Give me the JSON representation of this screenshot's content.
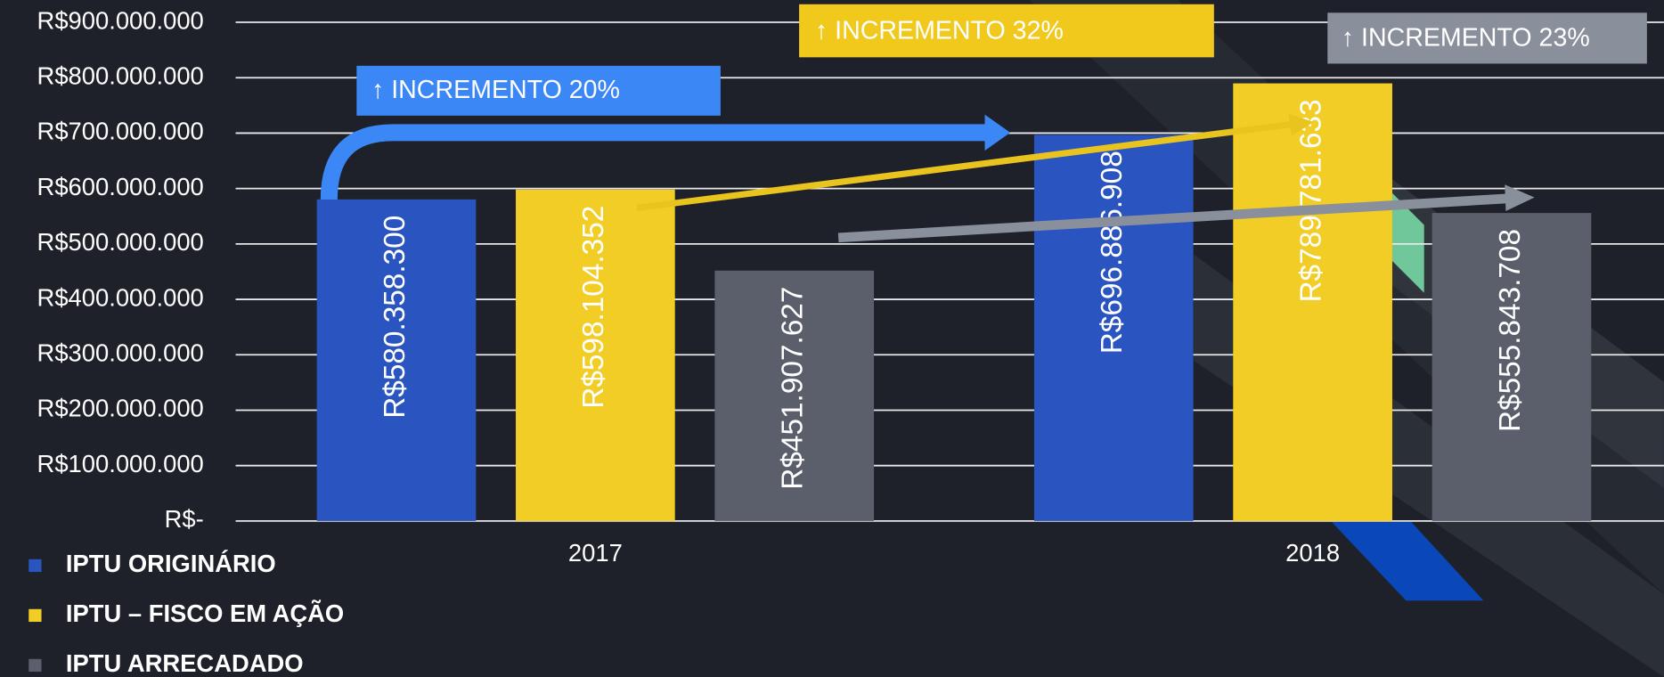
{
  "chart_data": {
    "type": "bar",
    "categories": [
      "2017",
      "2018"
    ],
    "series": [
      {
        "name": "IPTU ORIGINÁRIO",
        "color": "#2a54c0",
        "values": [
          580358300,
          696886908
        ],
        "value_labels": [
          "R$580.358.300",
          "R$696.886.908"
        ]
      },
      {
        "name": "IPTU – FISCO EM AÇÃO",
        "color": "#f2cd25",
        "values": [
          598104352,
          789781633
        ],
        "value_labels": [
          "R$598.104.352",
          "R$789.781.633"
        ]
      },
      {
        "name": "IPTU ARRECADADO",
        "color": "#5b5f6b",
        "values": [
          451907627,
          555843708
        ],
        "value_labels": [
          "R$451.907.627",
          "R$555.843.708"
        ]
      }
    ],
    "ylim": [
      0,
      900000000
    ],
    "yticks": [
      {
        "value": 0,
        "label": "R$-"
      },
      {
        "value": 100000000,
        "label": "R$100.000.000"
      },
      {
        "value": 200000000,
        "label": "R$200.000.000"
      },
      {
        "value": 300000000,
        "label": "R$300.000.000"
      },
      {
        "value": 400000000,
        "label": "R$400.000.000"
      },
      {
        "value": 500000000,
        "label": "R$500.000.000"
      },
      {
        "value": 600000000,
        "label": "R$600.000.000"
      },
      {
        "value": 700000000,
        "label": "R$700.000.000"
      },
      {
        "value": 800000000,
        "label": "R$800.000.000"
      },
      {
        "value": 900000000,
        "label": "R$900.000.000"
      }
    ],
    "grid": true,
    "annotations": [
      "↑ INCREMENTO 20%",
      "↑ INCREMENTO 32%",
      "↑ INCREMENTO 23%"
    ]
  }
}
